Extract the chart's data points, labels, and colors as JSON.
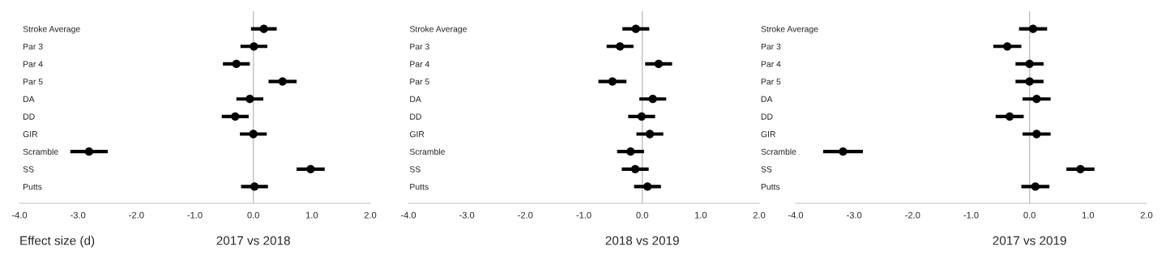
{
  "chart_data": [
    {
      "type": "scatter",
      "title": "2017 vs 2018",
      "orientation": "horizontal",
      "marker": "circle",
      "grid": false,
      "color": "#000000",
      "categories": [
        "Stroke Average",
        "Par 3",
        "Par 4",
        "Par 5",
        "DA",
        "DD",
        "GIR",
        "Scramble",
        "SS",
        "Putts"
      ],
      "values": [
        0.18,
        0.01,
        -0.29,
        0.5,
        -0.06,
        -0.31,
        0.0,
        -2.81,
        0.98,
        0.02
      ],
      "errors": [
        0.22,
        0.23,
        0.23,
        0.24,
        0.23,
        0.23,
        0.23,
        0.32,
        0.24,
        0.23
      ],
      "xlim": [
        -4,
        2
      ],
      "xticks": [
        {
          "value": -4,
          "label": "-4.0"
        },
        {
          "value": -3,
          "label": "-3.0"
        },
        {
          "value": -2,
          "label": "-2.0"
        },
        {
          "value": -1,
          "label": "-1.0"
        },
        {
          "value": 0,
          "label": "0.0"
        },
        {
          "value": 1,
          "label": "1.0"
        },
        {
          "value": 2,
          "label": "2.0"
        }
      ],
      "ref_lines": [
        {
          "axis": "x",
          "value": 0,
          "color": "#bfbfbf"
        }
      ],
      "annotations": [
        "Effect size (d)"
      ]
    },
    {
      "type": "scatter",
      "title": "2018 vs 2019",
      "orientation": "horizontal",
      "marker": "circle",
      "grid": false,
      "color": "#000000",
      "categories": [
        "Stroke Average",
        "Par 3",
        "Par 4",
        "Par 5",
        "DA",
        "DD",
        "GIR",
        "Scramble",
        "SS",
        "Putts"
      ],
      "values": [
        -0.11,
        -0.38,
        0.28,
        -0.51,
        0.18,
        -0.01,
        0.13,
        -0.2,
        -0.12,
        0.09
      ],
      "errors": [
        0.23,
        0.23,
        0.23,
        0.24,
        0.23,
        0.23,
        0.23,
        0.23,
        0.23,
        0.23
      ],
      "xlim": [
        -4,
        2
      ],
      "xticks": [
        {
          "value": -4,
          "label": "-4.0"
        },
        {
          "value": -3,
          "label": "-3.0"
        },
        {
          "value": -2,
          "label": "-2.0"
        },
        {
          "value": -1,
          "label": "-1.0"
        },
        {
          "value": 0,
          "label": "0.0"
        },
        {
          "value": 1,
          "label": "1.0"
        },
        {
          "value": 2,
          "label": "2.0"
        }
      ],
      "ref_lines": [
        {
          "axis": "x",
          "value": 0,
          "color": "#bfbfbf"
        }
      ]
    },
    {
      "type": "scatter",
      "title": "2017 vs 2019",
      "orientation": "horizontal",
      "marker": "circle",
      "grid": false,
      "color": "#000000",
      "categories": [
        "Stroke Average",
        "Par 3",
        "Par 4",
        "Par 5",
        "DA",
        "DD",
        "GIR",
        "Scramble",
        "SS",
        "Putts"
      ],
      "values": [
        0.06,
        -0.38,
        0.0,
        0.0,
        0.12,
        -0.34,
        0.12,
        -3.19,
        0.87,
        0.1
      ],
      "errors": [
        0.24,
        0.24,
        0.24,
        0.24,
        0.24,
        0.24,
        0.24,
        0.34,
        0.24,
        0.24
      ],
      "xlim": [
        -4,
        2
      ],
      "xticks": [
        {
          "value": -4,
          "label": "-4.0"
        },
        {
          "value": -3,
          "label": "-3.0"
        },
        {
          "value": -2,
          "label": "-2.0"
        },
        {
          "value": -1,
          "label": "-1.0"
        },
        {
          "value": 0,
          "label": "0.0"
        },
        {
          "value": 1,
          "label": "1.0"
        },
        {
          "value": 2,
          "label": "2.0"
        }
      ],
      "ref_lines": [
        {
          "axis": "x",
          "value": 0,
          "color": "#bfbfbf"
        }
      ]
    }
  ]
}
